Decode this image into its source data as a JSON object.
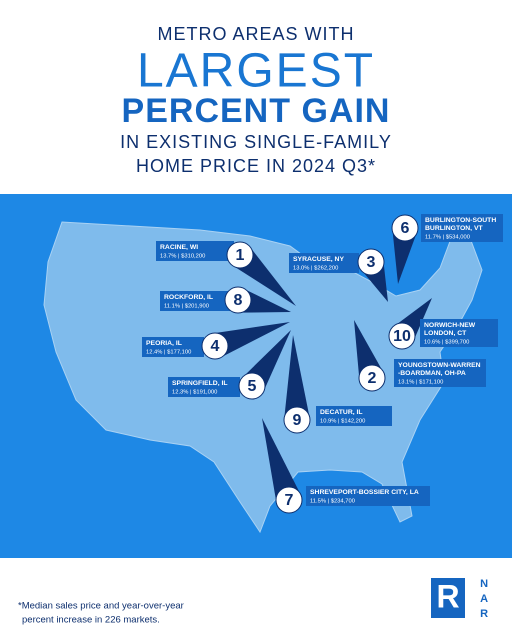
{
  "header": {
    "line1": "METRO AREAS WITH",
    "line2": "LARGEST",
    "line3": "PERCENT GAIN",
    "line4": "IN EXISTING SINGLE-FAMILY",
    "line5": "HOME PRICE IN 2024 Q3*"
  },
  "metros": [
    {
      "rank": 1,
      "name": [
        "RACINE, WI"
      ],
      "stats": "13.7% | $310,200"
    },
    {
      "rank": 6,
      "name": [
        "BURLINGTON-SOUTH",
        "BURLINGTON, VT"
      ],
      "stats": "11.7% | $534,000"
    },
    {
      "rank": 3,
      "name": [
        "SYRACUSE, NY"
      ],
      "stats": "13.0% | $262,200"
    },
    {
      "rank": 8,
      "name": [
        "ROCKFORD, IL"
      ],
      "stats": "11.1% | $201,900"
    },
    {
      "rank": 10,
      "name": [
        "NORWICH-NEW",
        "LONDON, CT"
      ],
      "stats": "10.6% | $399,700"
    },
    {
      "rank": 4,
      "name": [
        "PEORIA, IL"
      ],
      "stats": "12.4% | $177,100"
    },
    {
      "rank": 2,
      "name": [
        "YOUNGSTOWN-WARREN",
        "-BOARDMAN, OH-PA"
      ],
      "stats": "13.1% | $171,100"
    },
    {
      "rank": 5,
      "name": [
        "SPRINGFIELD, IL"
      ],
      "stats": "12.3% | $191,000"
    },
    {
      "rank": 9,
      "name": [
        "DECATUR, IL"
      ],
      "stats": "10.9% | $142,200"
    },
    {
      "rank": 7,
      "name": [
        "SHREVEPORT-BOSSIER CITY, LA"
      ],
      "stats": "11.5% | $234,700"
    }
  ],
  "footnote": [
    "*Median sales price and year-over-year",
    "percent increase in 226 markets."
  ],
  "logo": {
    "mark": "R",
    "text": "NAR"
  }
}
